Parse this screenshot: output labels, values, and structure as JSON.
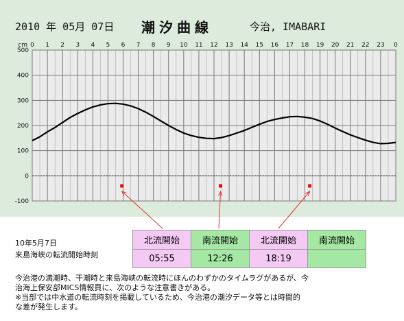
{
  "header": {
    "date_text": "2010 年 05月 07日",
    "title": "潮汐曲線",
    "location": "今治, IMABARI"
  },
  "chart_data": {
    "type": "line",
    "title": "潮汐曲線",
    "ylabel": "cm",
    "xlabel": "",
    "xlim": [
      0,
      24
    ],
    "ylim": [
      -100,
      500
    ],
    "x_tick_labels": [
      "0",
      "1",
      "2",
      "3",
      "4",
      "5",
      "6",
      "7",
      "8",
      "9",
      "10",
      "11",
      "12",
      "13",
      "14",
      "15",
      "16",
      "17",
      "18",
      "19",
      "20",
      "21",
      "22",
      "23",
      "0"
    ],
    "y_ticks": [
      -100,
      0,
      100,
      200,
      300,
      400,
      500
    ],
    "grid": true,
    "series": [
      {
        "x": [
          0,
          0.5,
          1,
          1.5,
          2,
          2.5,
          3,
          3.5,
          4,
          4.5,
          5,
          5.5,
          6,
          6.5,
          7,
          7.5,
          8,
          8.5,
          9,
          9.5,
          10,
          10.5,
          11,
          11.5,
          12,
          12.5,
          13,
          13.5,
          14,
          14.5,
          15,
          15.5,
          16,
          16.5,
          17,
          17.5,
          18,
          18.5,
          19,
          19.5,
          20,
          20.5,
          21,
          21.5,
          22,
          22.5,
          23,
          23.5,
          24
        ],
        "values": [
          140,
          155,
          175,
          192,
          212,
          232,
          248,
          262,
          274,
          282,
          287,
          288,
          285,
          278,
          267,
          253,
          236,
          218,
          200,
          184,
          170,
          160,
          153,
          149,
          148,
          152,
          160,
          170,
          180,
          193,
          205,
          216,
          224,
          230,
          235,
          236,
          233,
          228,
          218,
          205,
          190,
          176,
          163,
          152,
          142,
          133,
          128,
          129,
          133
        ]
      }
    ],
    "markers": [
      {
        "x": 5.92,
        "y": -40
      },
      {
        "x": 12.43,
        "y": -40
      },
      {
        "x": 18.32,
        "y": -40
      }
    ]
  },
  "current_table": {
    "caption_line1": "10年5月7日",
    "caption_line2": "来島海峡の転流開始時刻",
    "headers": [
      "北流開始",
      "南流開始",
      "北流開始",
      "南流開始"
    ],
    "times": [
      "05:55",
      "12:26",
      "18:19",
      ""
    ]
  },
  "notes": [
    "今治港の満潮時、干潮時と来島海峡の転流時にほんのわずかのタイムラグがあるが、今",
    "治海上保安部MICS情報頁に、次のような注意書きがある。",
    "※当部では中水道の転流時刻を掲載しているため、今治港の潮汐データ等とは時間的",
    "な差が発生します。"
  ],
  "colors": {
    "panel_bg": "#dcebdc",
    "plot_bg": "#ebebeb",
    "marker": "#dd1111",
    "arrow": "#dd3333",
    "north_cell": "#f4caf4",
    "south_cell": "#a4e8a4"
  }
}
